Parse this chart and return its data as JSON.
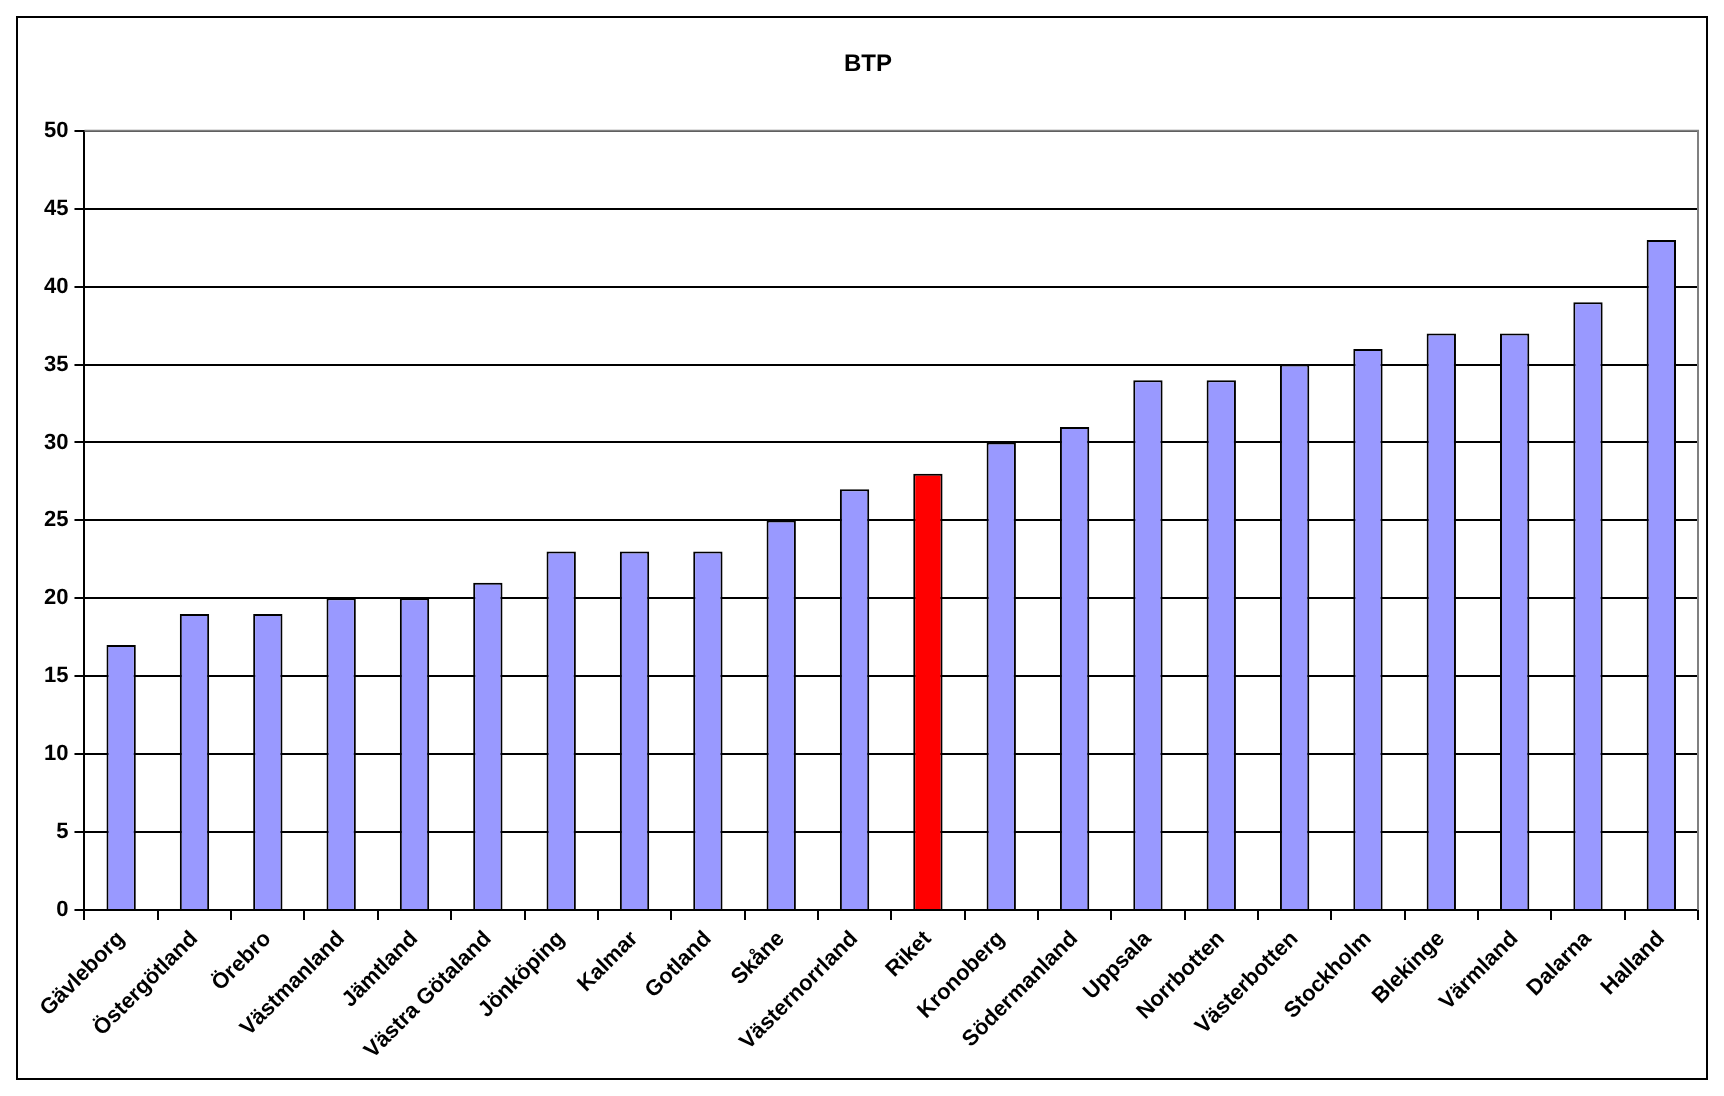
{
  "chart_data": {
    "type": "bar",
    "title": "BTP",
    "categories": [
      "Gävleborg",
      "Östergötland",
      "Örebro",
      "Västmanland",
      "Jämtland",
      "Västra Götaland",
      "Jönköping",
      "Kalmar",
      "Gotland",
      "Skåne",
      "Västernorrland",
      "Riket",
      "Kronoberg",
      "Södermanland",
      "Uppsala",
      "Norrbotten",
      "Västerbotten",
      "Stockholm",
      "Blekinge",
      "Värmland",
      "Dalarna",
      "Halland"
    ],
    "values": [
      17,
      19,
      19,
      20,
      20,
      21,
      23,
      23,
      23,
      25,
      27,
      28,
      30,
      31,
      34,
      34,
      35,
      36,
      37,
      37,
      39,
      43
    ],
    "colors": [
      "#9999ff",
      "#9999ff",
      "#9999ff",
      "#9999ff",
      "#9999ff",
      "#9999ff",
      "#9999ff",
      "#9999ff",
      "#9999ff",
      "#9999ff",
      "#9999ff",
      "#ff0000",
      "#9999ff",
      "#9999ff",
      "#9999ff",
      "#9999ff",
      "#9999ff",
      "#9999ff",
      "#9999ff",
      "#9999ff",
      "#9999ff",
      "#9999ff"
    ],
    "ylim": [
      0,
      50
    ],
    "yticks": [
      0,
      5,
      10,
      15,
      20,
      25,
      30,
      35,
      40,
      45,
      50
    ],
    "grid": "y",
    "legend": false
  }
}
